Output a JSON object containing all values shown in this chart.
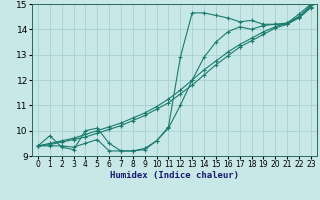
{
  "xlabel": "Humidex (Indice chaleur)",
  "line_color": "#1a7a6e",
  "bg_color": "#c8e8e8",
  "grid_color": "#a0cccc",
  "xlim": [
    -0.5,
    23.5
  ],
  "ylim": [
    9,
    15
  ],
  "yticks": [
    9,
    10,
    11,
    12,
    13,
    14,
    15
  ],
  "xticks": [
    0,
    1,
    2,
    3,
    4,
    5,
    6,
    7,
    8,
    9,
    10,
    11,
    12,
    13,
    14,
    15,
    16,
    17,
    18,
    19,
    20,
    21,
    22,
    23
  ],
  "lines": [
    {
      "x": [
        0,
        1,
        2,
        3,
        4,
        5,
        6,
        7,
        8,
        9,
        10,
        11,
        12,
        13,
        14,
        15,
        16,
        17,
        18,
        19,
        20,
        21,
        22,
        23
      ],
      "y": [
        9.4,
        9.8,
        9.35,
        9.25,
        10.0,
        10.1,
        9.5,
        9.2,
        9.2,
        9.25,
        9.6,
        10.15,
        12.9,
        14.65,
        14.65,
        14.55,
        14.45,
        14.3,
        14.35,
        14.2,
        14.2,
        14.25,
        14.6,
        15.0
      ]
    },
    {
      "x": [
        0,
        1,
        2,
        3,
        4,
        5,
        6,
        7,
        8,
        9,
        10,
        11,
        12,
        13,
        14,
        15,
        16,
        17,
        18,
        19,
        20,
        21,
        22,
        23
      ],
      "y": [
        9.4,
        9.4,
        9.4,
        9.35,
        9.5,
        9.65,
        9.2,
        9.2,
        9.2,
        9.3,
        9.6,
        10.1,
        11.0,
        12.0,
        12.9,
        13.5,
        13.9,
        14.1,
        14.0,
        14.15,
        14.2,
        14.2,
        14.5,
        14.95
      ]
    },
    {
      "x": [
        0,
        1,
        2,
        3,
        4,
        5,
        6,
        7,
        8,
        9,
        10,
        11,
        12,
        13,
        14,
        15,
        16,
        17,
        18,
        19,
        20,
        21,
        22,
        23
      ],
      "y": [
        9.4,
        9.45,
        9.55,
        9.65,
        9.75,
        9.9,
        10.05,
        10.2,
        10.4,
        10.6,
        10.85,
        11.1,
        11.45,
        11.8,
        12.2,
        12.6,
        12.95,
        13.3,
        13.55,
        13.8,
        14.05,
        14.2,
        14.45,
        14.85
      ]
    },
    {
      "x": [
        0,
        1,
        2,
        3,
        4,
        5,
        6,
        7,
        8,
        9,
        10,
        11,
        12,
        13,
        14,
        15,
        16,
        17,
        18,
        19,
        20,
        21,
        22,
        23
      ],
      "y": [
        9.4,
        9.5,
        9.6,
        9.7,
        9.85,
        10.0,
        10.15,
        10.3,
        10.5,
        10.7,
        10.95,
        11.25,
        11.6,
        12.0,
        12.4,
        12.75,
        13.1,
        13.4,
        13.65,
        13.9,
        14.1,
        14.25,
        14.5,
        14.9
      ]
    }
  ]
}
